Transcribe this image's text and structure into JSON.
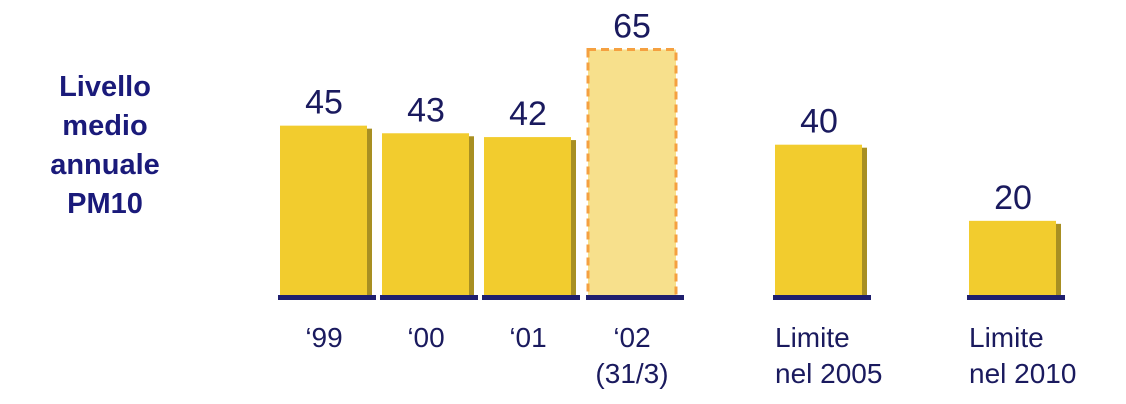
{
  "chart_data": {
    "type": "bar",
    "y_label": "Livello\nmedio\nannuale\nPM10",
    "categories": [
      "‘99",
      "‘00",
      "‘01",
      "‘02\n(31/3)",
      "Limite\nnel 2005",
      "Limite\nnel 2010"
    ],
    "values": [
      45,
      43,
      42,
      65,
      40,
      20
    ],
    "colors": [
      "#f2cc2e",
      "#f2cc2e",
      "#f2cc2e",
      "#f7e08c",
      "#f2cc2e",
      "#f2cc2e"
    ],
    "dashed": [
      false,
      false,
      false,
      true,
      false,
      false
    ],
    "dashed_color": "#f5a040",
    "baseline_color": "#1f1f6e",
    "ylim": [
      0,
      78
    ]
  }
}
